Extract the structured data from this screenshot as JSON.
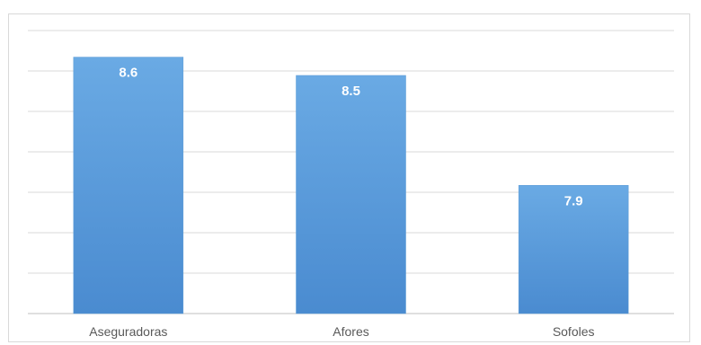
{
  "chart_data": {
    "type": "bar",
    "categories": [
      "Aseguradoras",
      "Afores",
      "Sofoles"
    ],
    "values": [
      8.6,
      8.5,
      7.9
    ],
    "data_labels": [
      "8.6",
      "8.5",
      "7.9"
    ],
    "title": "",
    "xlabel": "",
    "ylabel": "",
    "ylim": [
      7.2,
      8.75
    ],
    "grid": true,
    "legend": "none",
    "bar_color_top": "#6aaae4",
    "bar_color_bottom": "#4a8bd0",
    "bar_edge_color": "#5b9bd5"
  }
}
